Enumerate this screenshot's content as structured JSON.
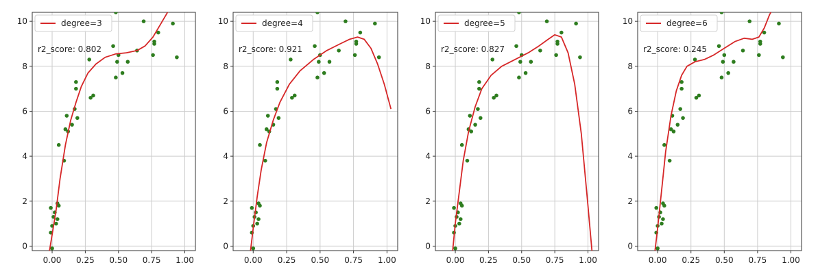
{
  "colors": {
    "fit_line": "#d62728",
    "points": "#2e7d1f",
    "grid": "#cccccc",
    "axes": "#333333"
  },
  "chart_data": [
    {
      "type": "scatter",
      "legend": "degree=3",
      "score_label": "r2_score: 0.802",
      "xlim": [
        -0.15,
        1.08
      ],
      "ylim": [
        -0.2,
        10.4
      ],
      "xticks": [
        "0.00",
        "0.25",
        "0.50",
        "0.75",
        "1.00"
      ],
      "yticks": [
        "0",
        "2",
        "4",
        "6",
        "8",
        "10"
      ],
      "grid": true,
      "legend_position": "top-left",
      "fit_curve": {
        "x": [
          -0.02,
          0.0,
          0.03,
          0.06,
          0.1,
          0.14,
          0.18,
          0.22,
          0.27,
          0.33,
          0.4,
          0.48,
          0.56,
          0.64,
          0.7,
          0.76,
          0.81,
          0.86,
          0.89
        ],
        "y": [
          -0.2,
          0.5,
          1.6,
          3.0,
          4.5,
          5.6,
          6.4,
          7.1,
          7.7,
          8.1,
          8.4,
          8.55,
          8.6,
          8.7,
          8.9,
          9.3,
          9.8,
          10.3,
          10.6
        ]
      },
      "points": [
        [
          0.0,
          -0.1
        ],
        [
          -0.01,
          0.6
        ],
        [
          0.0,
          0.9
        ],
        [
          0.01,
          1.3
        ],
        [
          0.03,
          1.0
        ],
        [
          0.02,
          1.5
        ],
        [
          0.04,
          1.2
        ],
        [
          0.05,
          1.8
        ],
        [
          0.04,
          1.9
        ],
        [
          -0.01,
          1.7
        ],
        [
          0.05,
          4.5
        ],
        [
          0.09,
          3.8
        ],
        [
          0.1,
          5.2
        ],
        [
          0.12,
          5.1
        ],
        [
          0.11,
          5.8
        ],
        [
          0.15,
          5.4
        ],
        [
          0.17,
          6.1
        ],
        [
          0.19,
          5.7
        ],
        [
          0.18,
          7.0
        ],
        [
          0.18,
          7.3
        ],
        [
          0.28,
          8.3
        ],
        [
          0.29,
          6.6
        ],
        [
          0.31,
          6.7
        ],
        [
          0.46,
          8.9
        ],
        [
          0.48,
          7.5
        ],
        [
          0.49,
          8.2
        ],
        [
          0.5,
          8.5
        ],
        [
          0.53,
          7.7
        ],
        [
          0.57,
          8.2
        ],
        [
          0.64,
          8.7
        ],
        [
          0.69,
          10.0
        ],
        [
          0.76,
          8.5
        ],
        [
          0.77,
          9.0
        ],
        [
          0.77,
          9.1
        ],
        [
          0.8,
          9.5
        ],
        [
          0.91,
          9.9
        ],
        [
          0.94,
          8.4
        ],
        [
          0.48,
          10.4
        ]
      ]
    },
    {
      "type": "scatter",
      "legend": "degree=4",
      "score_label": "r2_score: 0.921",
      "xlim": [
        -0.15,
        1.08
      ],
      "ylim": [
        -0.2,
        10.4
      ],
      "xticks": [
        "0.00",
        "0.25",
        "0.50",
        "0.75",
        "1.00"
      ],
      "yticks": [
        "0",
        "2",
        "4",
        "6",
        "8",
        "10"
      ],
      "grid": true,
      "legend_position": "top-left",
      "fit_curve": {
        "x": [
          -0.02,
          0.0,
          0.03,
          0.06,
          0.1,
          0.15,
          0.2,
          0.27,
          0.35,
          0.45,
          0.55,
          0.65,
          0.72,
          0.78,
          0.83,
          0.88,
          0.93,
          0.98,
          1.03
        ],
        "y": [
          -0.2,
          0.8,
          2.2,
          3.4,
          4.6,
          5.6,
          6.4,
          7.2,
          7.8,
          8.3,
          8.7,
          9.0,
          9.2,
          9.3,
          9.2,
          8.8,
          8.1,
          7.2,
          6.1
        ]
      },
      "points": [
        [
          0.0,
          -0.1
        ],
        [
          -0.01,
          0.6
        ],
        [
          0.0,
          0.9
        ],
        [
          0.01,
          1.3
        ],
        [
          0.03,
          1.0
        ],
        [
          0.02,
          1.5
        ],
        [
          0.04,
          1.2
        ],
        [
          0.05,
          1.8
        ],
        [
          0.04,
          1.9
        ],
        [
          -0.01,
          1.7
        ],
        [
          0.05,
          4.5
        ],
        [
          0.09,
          3.8
        ],
        [
          0.1,
          5.2
        ],
        [
          0.12,
          5.1
        ],
        [
          0.11,
          5.8
        ],
        [
          0.15,
          5.4
        ],
        [
          0.17,
          6.1
        ],
        [
          0.19,
          5.7
        ],
        [
          0.18,
          7.0
        ],
        [
          0.18,
          7.3
        ],
        [
          0.28,
          8.3
        ],
        [
          0.29,
          6.6
        ],
        [
          0.31,
          6.7
        ],
        [
          0.46,
          8.9
        ],
        [
          0.48,
          7.5
        ],
        [
          0.49,
          8.2
        ],
        [
          0.5,
          8.5
        ],
        [
          0.53,
          7.7
        ],
        [
          0.57,
          8.2
        ],
        [
          0.64,
          8.7
        ],
        [
          0.69,
          10.0
        ],
        [
          0.76,
          8.5
        ],
        [
          0.77,
          9.0
        ],
        [
          0.77,
          9.1
        ],
        [
          0.8,
          9.5
        ],
        [
          0.91,
          9.9
        ],
        [
          0.94,
          8.4
        ],
        [
          0.48,
          10.4
        ]
      ]
    },
    {
      "type": "scatter",
      "legend": "degree=5",
      "score_label": "r2_score: 0.827",
      "xlim": [
        -0.15,
        1.08
      ],
      "ylim": [
        -0.2,
        10.4
      ],
      "xticks": [
        "0.00",
        "0.25",
        "0.50",
        "0.75",
        "1.00"
      ],
      "yticks": [
        "0",
        "2",
        "4",
        "6",
        "8",
        "10"
      ],
      "grid": true,
      "legend_position": "top-left",
      "fit_curve": {
        "x": [
          -0.02,
          0.0,
          0.03,
          0.06,
          0.1,
          0.15,
          0.2,
          0.27,
          0.35,
          0.45,
          0.55,
          0.63,
          0.7,
          0.75,
          0.8,
          0.85,
          0.9,
          0.95,
          1.0,
          1.03
        ],
        "y": [
          -0.2,
          1.0,
          2.4,
          3.8,
          5.1,
          6.2,
          7.0,
          7.6,
          8.0,
          8.3,
          8.6,
          8.9,
          9.2,
          9.4,
          9.3,
          8.6,
          7.2,
          5.0,
          1.8,
          -0.2
        ]
      },
      "points": [
        [
          0.0,
          -0.1
        ],
        [
          -0.01,
          0.6
        ],
        [
          0.0,
          0.9
        ],
        [
          0.01,
          1.3
        ],
        [
          0.03,
          1.0
        ],
        [
          0.02,
          1.5
        ],
        [
          0.04,
          1.2
        ],
        [
          0.05,
          1.8
        ],
        [
          0.04,
          1.9
        ],
        [
          -0.01,
          1.7
        ],
        [
          0.05,
          4.5
        ],
        [
          0.09,
          3.8
        ],
        [
          0.1,
          5.2
        ],
        [
          0.12,
          5.1
        ],
        [
          0.11,
          5.8
        ],
        [
          0.15,
          5.4
        ],
        [
          0.17,
          6.1
        ],
        [
          0.19,
          5.7
        ],
        [
          0.18,
          7.0
        ],
        [
          0.18,
          7.3
        ],
        [
          0.28,
          8.3
        ],
        [
          0.29,
          6.6
        ],
        [
          0.31,
          6.7
        ],
        [
          0.46,
          8.9
        ],
        [
          0.48,
          7.5
        ],
        [
          0.49,
          8.2
        ],
        [
          0.5,
          8.5
        ],
        [
          0.53,
          7.7
        ],
        [
          0.57,
          8.2
        ],
        [
          0.64,
          8.7
        ],
        [
          0.69,
          10.0
        ],
        [
          0.76,
          8.5
        ],
        [
          0.77,
          9.0
        ],
        [
          0.77,
          9.1
        ],
        [
          0.8,
          9.5
        ],
        [
          0.91,
          9.9
        ],
        [
          0.94,
          8.4
        ],
        [
          0.48,
          10.4
        ]
      ]
    },
    {
      "type": "scatter",
      "legend": "degree=6",
      "score_label": "r2_score: 0.245",
      "xlim": [
        -0.15,
        1.08
      ],
      "ylim": [
        -0.2,
        10.4
      ],
      "xticks": [
        "0.00",
        "0.25",
        "0.50",
        "0.75",
        "1.00"
      ],
      "yticks": [
        "0",
        "2",
        "4",
        "6",
        "8",
        "10"
      ],
      "grid": true,
      "legend_position": "top-left",
      "fit_curve": {
        "x": [
          -0.02,
          0.0,
          0.03,
          0.06,
          0.1,
          0.14,
          0.18,
          0.22,
          0.28,
          0.35,
          0.42,
          0.5,
          0.58,
          0.65,
          0.71,
          0.76,
          0.8,
          0.84,
          0.87
        ],
        "y": [
          -0.2,
          0.8,
          2.5,
          4.2,
          5.8,
          6.9,
          7.6,
          8.0,
          8.2,
          8.3,
          8.5,
          8.8,
          9.1,
          9.25,
          9.2,
          9.3,
          9.7,
          10.3,
          10.6
        ]
      },
      "points": [
        [
          0.0,
          -0.1
        ],
        [
          -0.01,
          0.6
        ],
        [
          0.0,
          0.9
        ],
        [
          0.01,
          1.3
        ],
        [
          0.03,
          1.0
        ],
        [
          0.02,
          1.5
        ],
        [
          0.04,
          1.2
        ],
        [
          0.05,
          1.8
        ],
        [
          0.04,
          1.9
        ],
        [
          -0.01,
          1.7
        ],
        [
          0.05,
          4.5
        ],
        [
          0.09,
          3.8
        ],
        [
          0.1,
          5.2
        ],
        [
          0.12,
          5.1
        ],
        [
          0.11,
          5.8
        ],
        [
          0.15,
          5.4
        ],
        [
          0.17,
          6.1
        ],
        [
          0.19,
          5.7
        ],
        [
          0.18,
          7.0
        ],
        [
          0.18,
          7.3
        ],
        [
          0.28,
          8.3
        ],
        [
          0.29,
          6.6
        ],
        [
          0.31,
          6.7
        ],
        [
          0.46,
          8.9
        ],
        [
          0.48,
          7.5
        ],
        [
          0.49,
          8.2
        ],
        [
          0.5,
          8.5
        ],
        [
          0.53,
          7.7
        ],
        [
          0.57,
          8.2
        ],
        [
          0.64,
          8.7
        ],
        [
          0.69,
          10.0
        ],
        [
          0.76,
          8.5
        ],
        [
          0.77,
          9.0
        ],
        [
          0.77,
          9.1
        ],
        [
          0.8,
          9.5
        ],
        [
          0.91,
          9.9
        ],
        [
          0.94,
          8.4
        ],
        [
          0.48,
          10.4
        ]
      ]
    }
  ]
}
